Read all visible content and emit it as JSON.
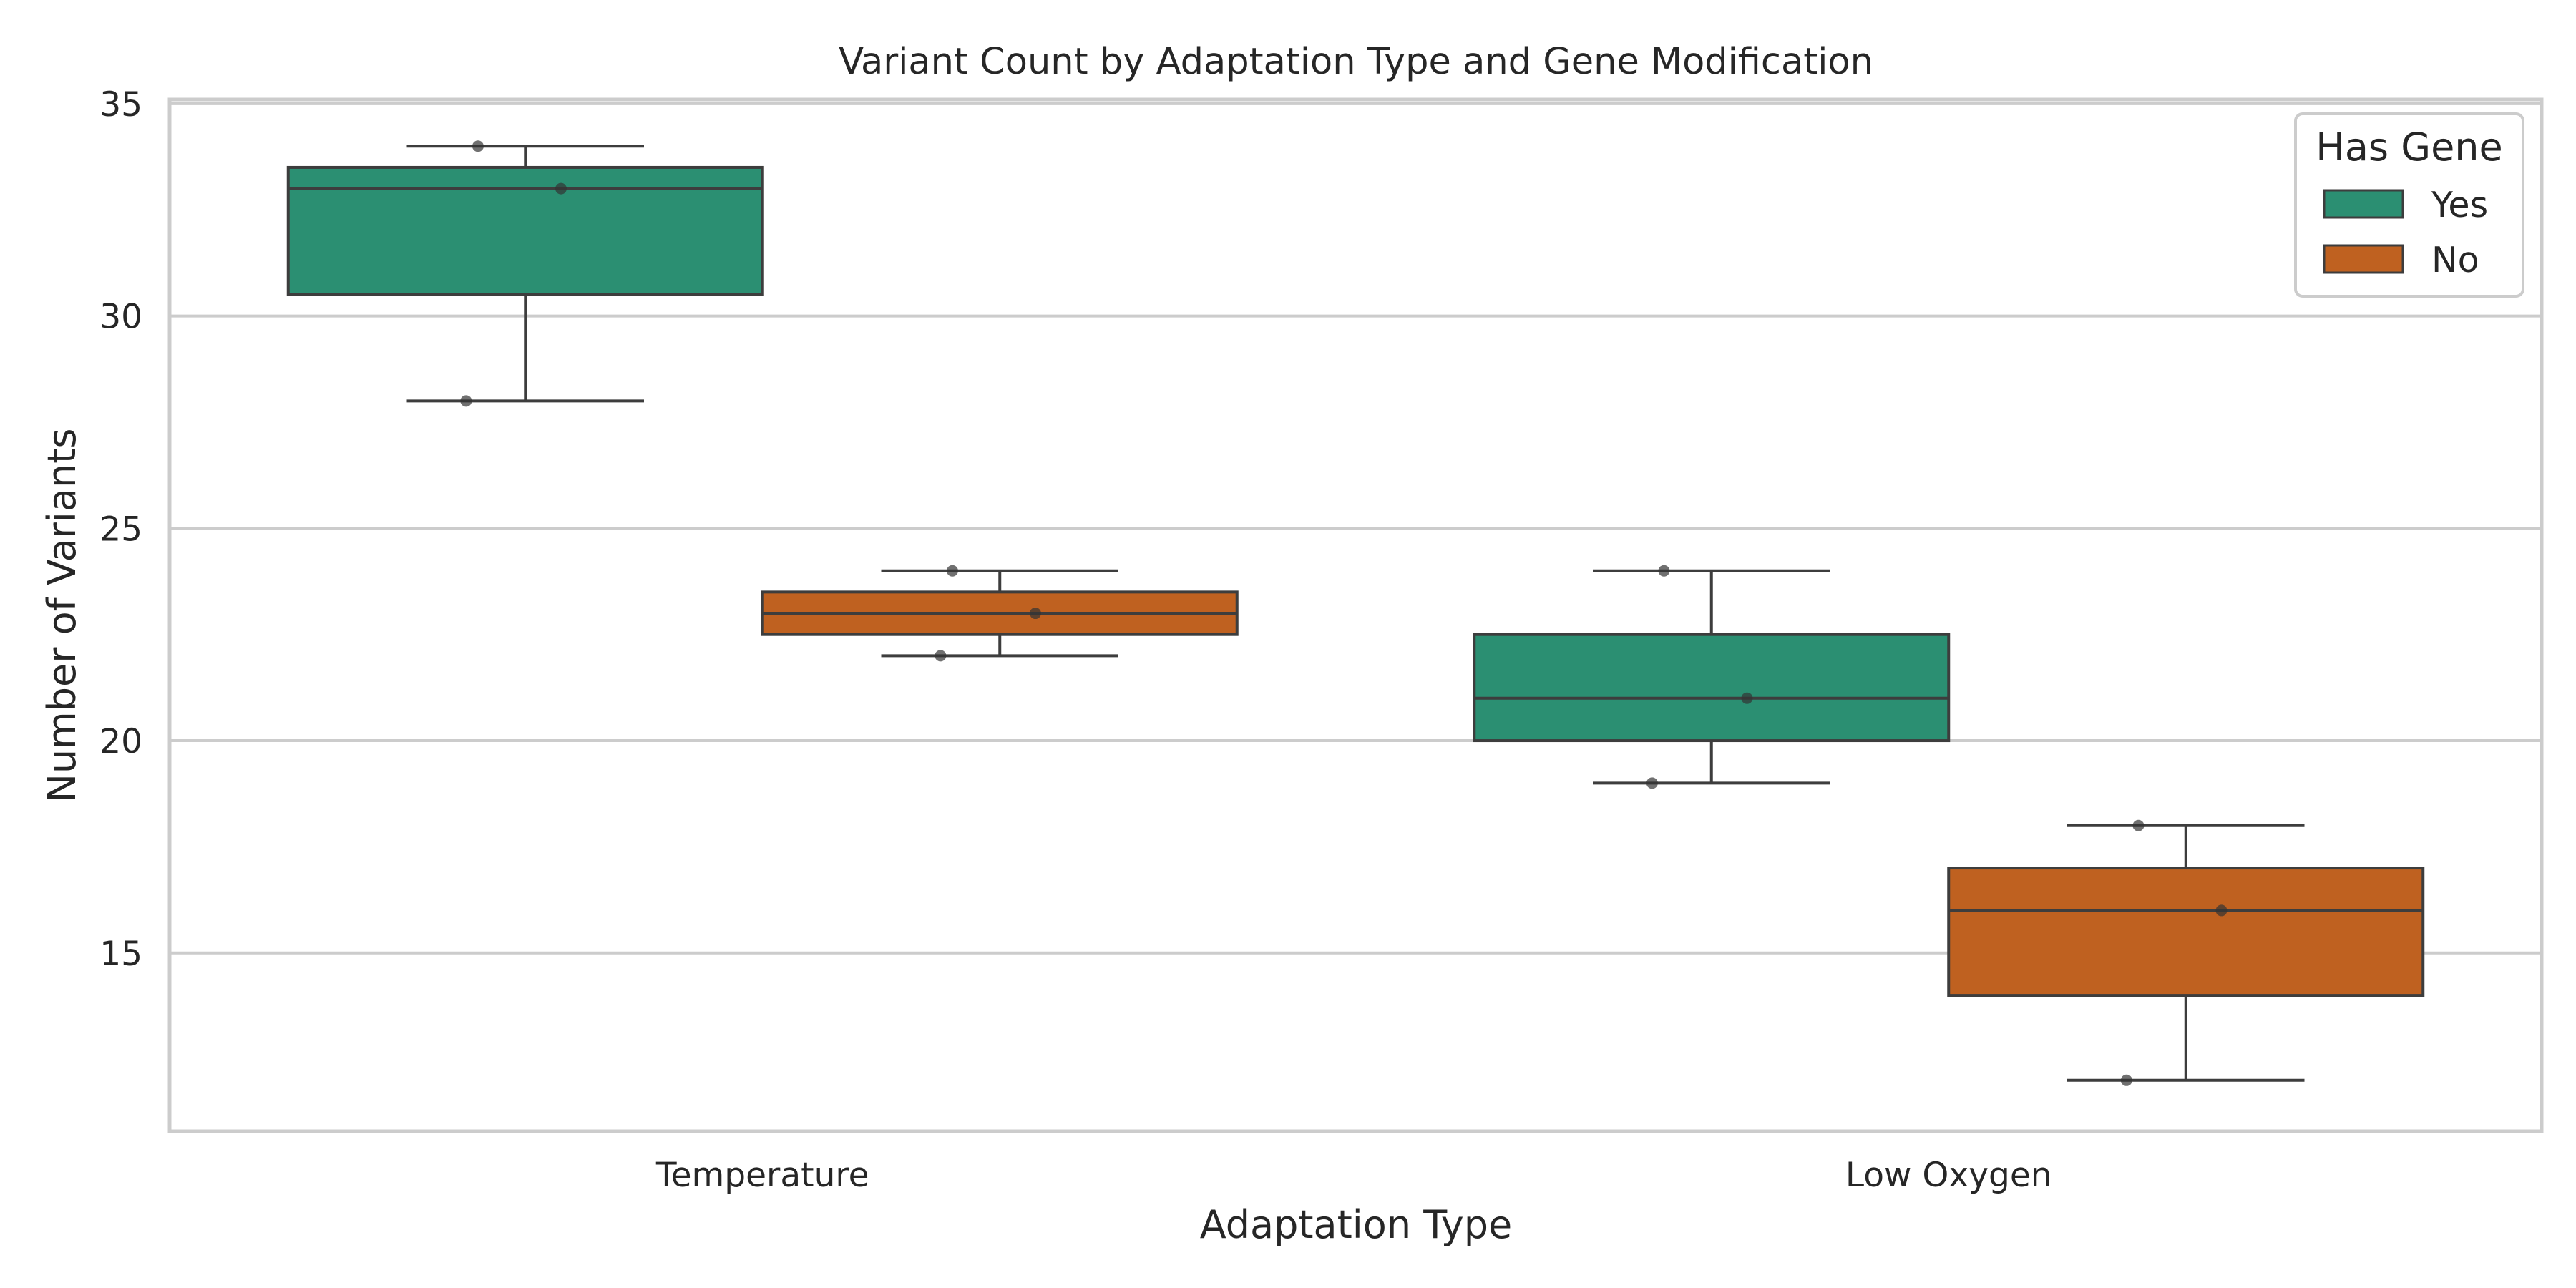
{
  "chart_data": {
    "type": "box",
    "title": "Variant Count by Adaptation Type and Gene Modification",
    "xlabel": "Adaptation Type",
    "ylabel": "Number of Variants",
    "categories": [
      "Temperature",
      "Low Oxygen"
    ],
    "ylim": [
      10.8,
      35.1
    ],
    "yticks": [
      "15",
      "20",
      "25",
      "30",
      "35"
    ],
    "grid": true,
    "legend": {
      "title": "Has Gene",
      "placement": "top-right",
      "entries": [
        "Yes",
        "No"
      ]
    },
    "series": [
      {
        "name": "Yes",
        "color": "#2b8f72",
        "boxes": [
          {
            "category": "Temperature",
            "min": 28,
            "q1": 30.5,
            "median": 33,
            "q3": 33.5,
            "max": 34,
            "points": [
              34,
              33,
              28
            ]
          },
          {
            "category": "Low Oxygen",
            "min": 19,
            "q1": 20,
            "median": 21,
            "q3": 22.5,
            "max": 24,
            "points": [
              24,
              21,
              19
            ]
          }
        ]
      },
      {
        "name": "No",
        "color": "#bf6120",
        "boxes": [
          {
            "category": "Temperature",
            "min": 22,
            "q1": 22.5,
            "median": 23,
            "q3": 23.5,
            "max": 24,
            "points": [
              24,
              23,
              22
            ]
          },
          {
            "category": "Low Oxygen",
            "min": 12,
            "q1": 14,
            "median": 16,
            "q3": 17,
            "max": 18,
            "points": [
              18,
              16,
              12
            ]
          }
        ]
      }
    ]
  }
}
